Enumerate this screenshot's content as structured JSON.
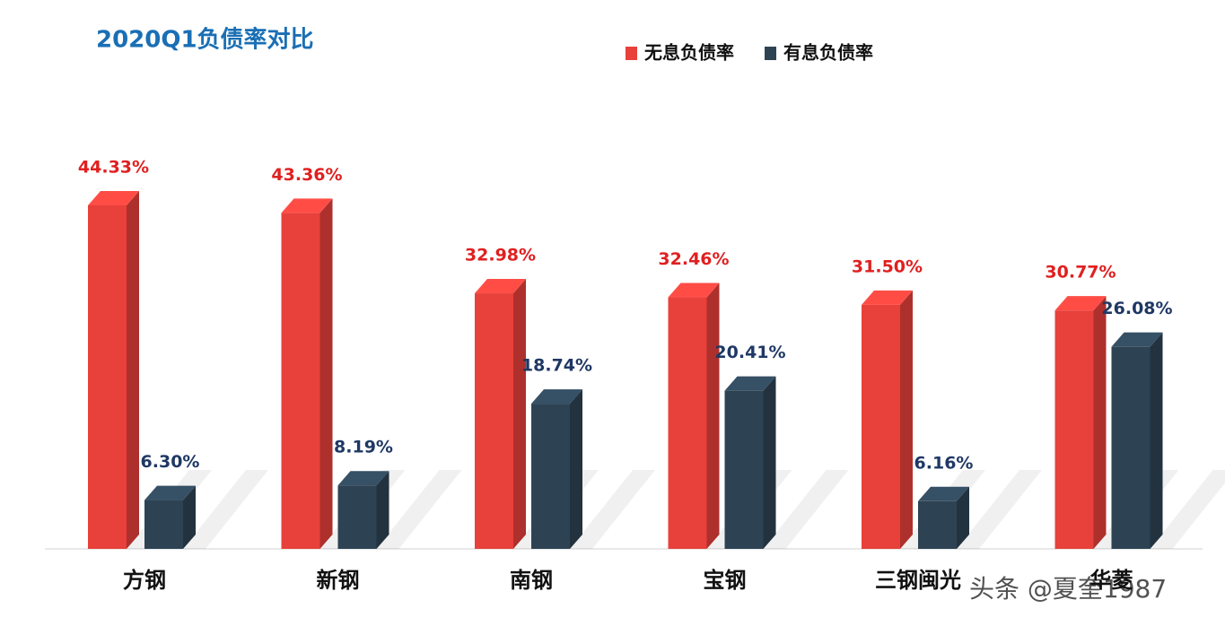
{
  "chart_data": {
    "type": "bar3d",
    "title": "2020Q1负债率对比",
    "categories": [
      "方钢",
      "新钢",
      "南钢",
      "宝钢",
      "三钢闽光",
      "华菱"
    ],
    "series": [
      {
        "name": "无息负债率",
        "color": "#e8403a",
        "label_color": "#e02020",
        "values": [
          44.33,
          43.36,
          32.98,
          32.46,
          31.5,
          30.77
        ],
        "value_labels": [
          "44.33%",
          "43.36%",
          "32.98%",
          "32.46%",
          "31.50%",
          "30.77%"
        ]
      },
      {
        "name": "有息负债率",
        "color": "#2d4354",
        "label_color": "#1f3864",
        "values": [
          6.3,
          8.19,
          18.74,
          20.41,
          6.16,
          26.08
        ],
        "value_labels": [
          "6.30%",
          "8.19%",
          "18.74%",
          "20.41%",
          "6.16%",
          "26.08%"
        ]
      }
    ],
    "watermark": "头条 @夏奎1987"
  }
}
